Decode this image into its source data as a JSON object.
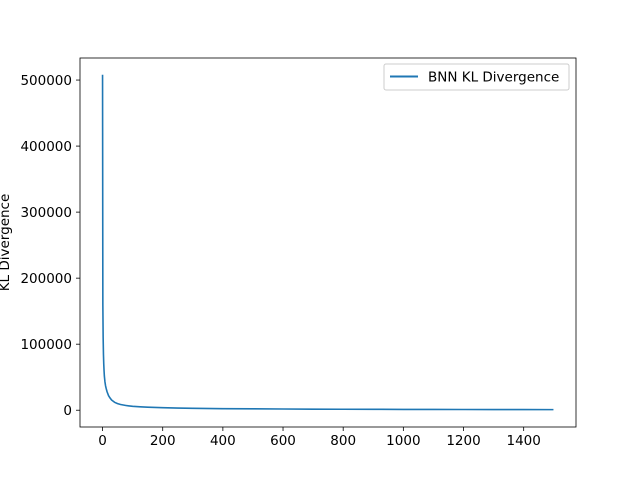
{
  "chart_data": {
    "type": "line",
    "title": "",
    "xlabel": "",
    "ylabel": "KL Divergence",
    "xlim": [
      -74.95,
      1573.95
    ],
    "ylim": [
      -25400,
      533400
    ],
    "xticks": [
      0,
      200,
      400,
      600,
      800,
      1000,
      1200,
      1400
    ],
    "yticks": [
      0,
      100000,
      200000,
      300000,
      400000,
      500000
    ],
    "grid": false,
    "legend": {
      "location": "top-right"
    },
    "series": [
      {
        "name": "BNN KL Divergence",
        "color": "#1f77b4",
        "x": [
          0,
          1,
          2,
          3,
          4,
          5,
          6,
          8,
          10,
          12,
          15,
          20,
          25,
          30,
          40,
          50,
          60,
          80,
          100,
          125,
          150,
          200,
          250,
          300,
          400,
          500,
          600,
          700,
          800,
          900,
          1000,
          1100,
          1200,
          1300,
          1400,
          1499
        ],
        "y": [
          508000,
          160000,
          110000,
          85000,
          70000,
          60000,
          52000,
          43000,
          37000,
          33000,
          28000,
          22000,
          18500,
          15500,
          12000,
          10000,
          8700,
          7000,
          6000,
          5200,
          4600,
          3800,
          3300,
          2900,
          2400,
          2100,
          1850,
          1650,
          1500,
          1380,
          1270,
          1180,
          1100,
          1030,
          970,
          920
        ]
      }
    ]
  }
}
